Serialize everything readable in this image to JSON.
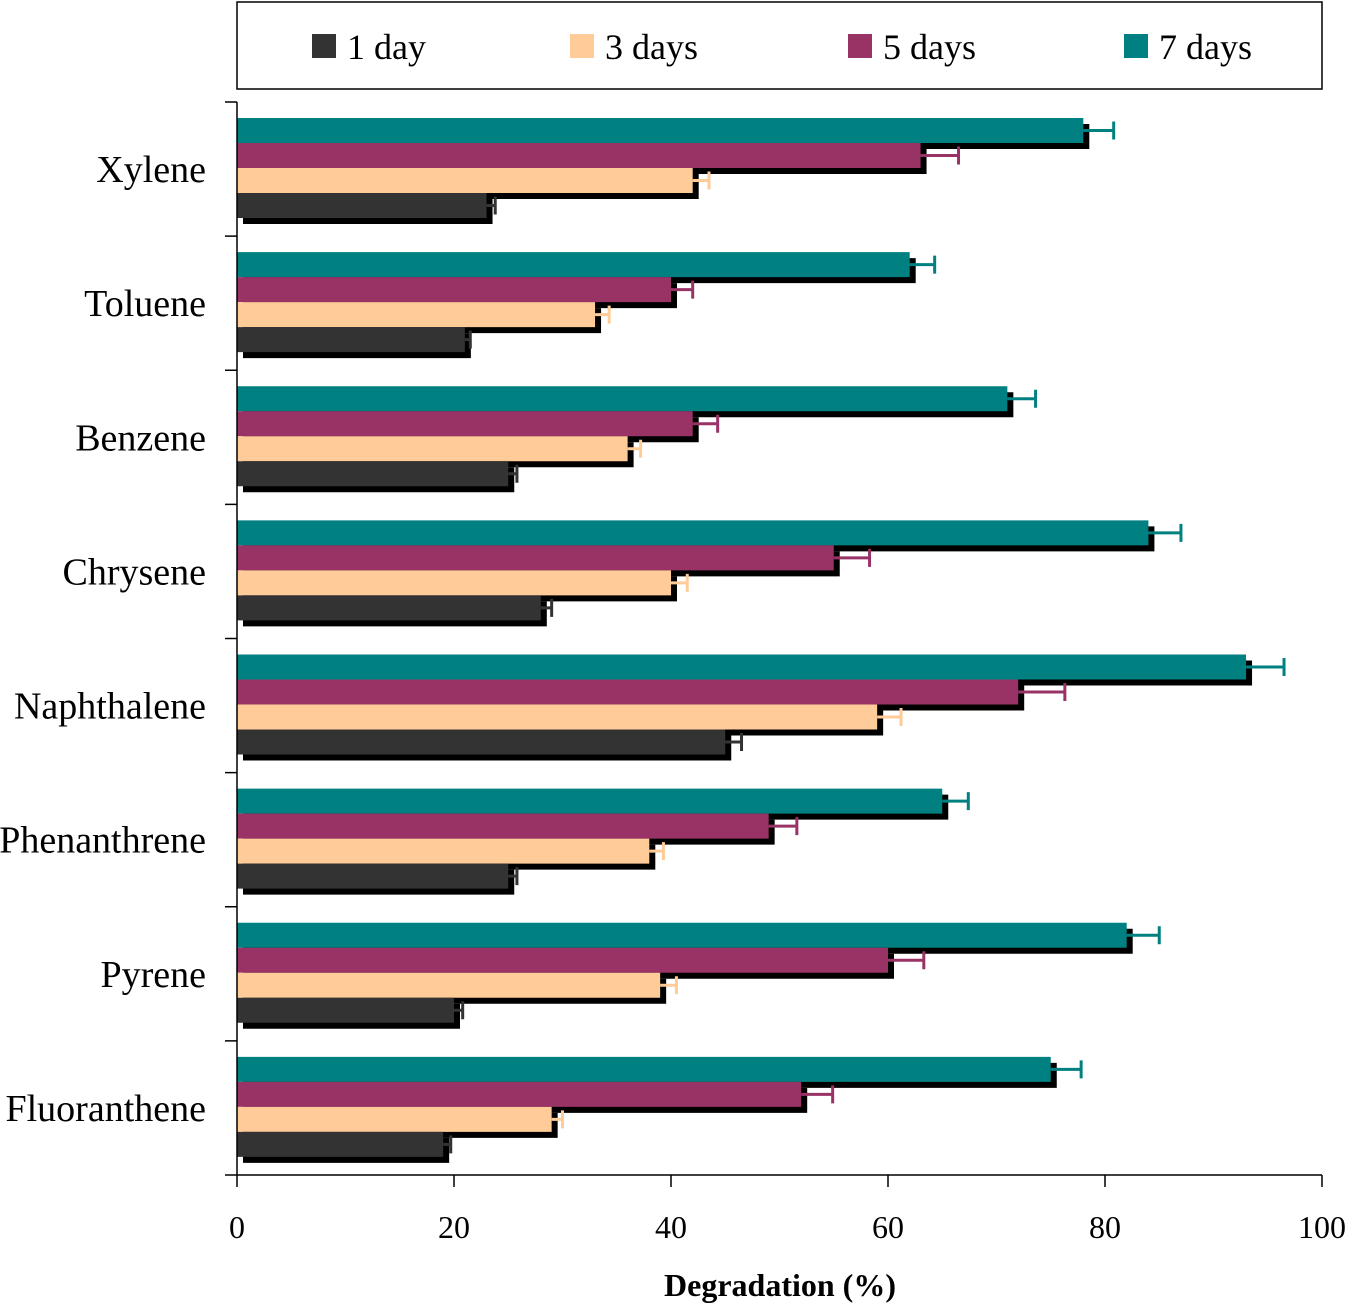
{
  "chart_data": {
    "type": "bar",
    "orientation": "horizontal",
    "title": "",
    "xlabel": "Degradation (%)",
    "ylabel": "",
    "xlim": [
      0,
      100
    ],
    "xticks": [
      0,
      20,
      40,
      60,
      80,
      100
    ],
    "grid": false,
    "legend_position": "top",
    "categories": [
      "Xylene",
      "Toluene",
      "Benzene",
      "Chrysene",
      "Naphthalene",
      "Phenanthrene",
      "Pyrene",
      "Fluoranthene"
    ],
    "series": [
      {
        "name": "1 day",
        "color": "#333333",
        "values": [
          23,
          21,
          25,
          28,
          45,
          25,
          20,
          19
        ],
        "errors": [
          0.8,
          0.5,
          0.8,
          1.0,
          1.5,
          0.8,
          0.8,
          0.7
        ]
      },
      {
        "name": "3 days",
        "color": "#FFCC99",
        "values": [
          42,
          33,
          36,
          40,
          59,
          38,
          39,
          29
        ],
        "errors": [
          1.5,
          1.3,
          1.2,
          1.5,
          2.2,
          1.3,
          1.5,
          1.0
        ]
      },
      {
        "name": "5 days",
        "color": "#993366",
        "values": [
          63,
          40,
          42,
          55,
          72,
          49,
          60,
          52
        ],
        "errors": [
          3.5,
          2.0,
          2.3,
          3.3,
          4.3,
          2.6,
          3.3,
          2.9
        ]
      },
      {
        "name": "7 days",
        "color": "#008080",
        "values": [
          78,
          62,
          71,
          84,
          93,
          65,
          82,
          75
        ],
        "errors": [
          2.8,
          2.3,
          2.6,
          3.0,
          3.5,
          2.4,
          3.0,
          2.8
        ]
      }
    ]
  }
}
